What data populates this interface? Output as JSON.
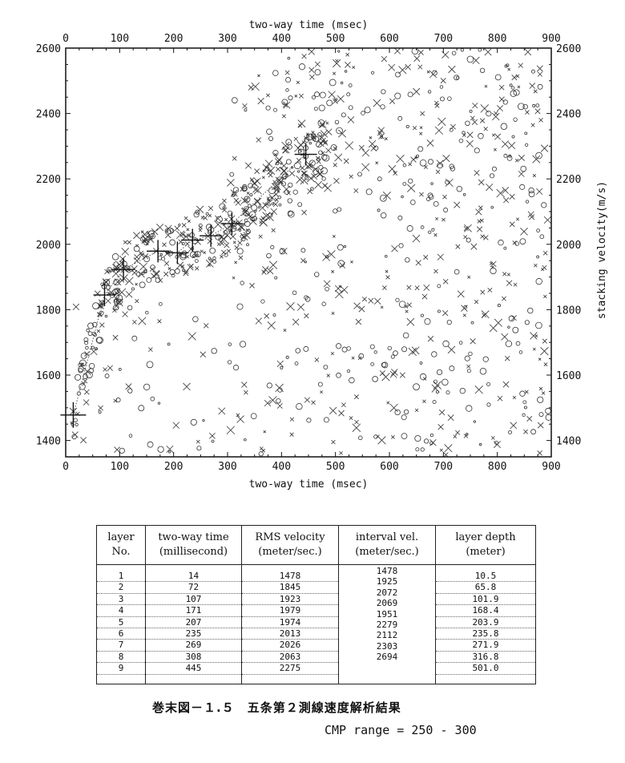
{
  "chart_data": {
    "type": "scatter",
    "xlabel": "two-way time (msec)",
    "ylabel": "stacking velocity(m/s)",
    "xlim": [
      0,
      900
    ],
    "ylim": [
      1350,
      2600
    ],
    "x_ticks": [
      "0",
      "100",
      "200",
      "300",
      "400",
      "500",
      "600",
      "700",
      "800",
      "900"
    ],
    "y_ticks": [
      "1400",
      "1600",
      "1800",
      "2000",
      "2200",
      "2400",
      "2600"
    ],
    "grid": false,
    "picked_velocity_function": {
      "x": [
        14,
        72,
        107,
        171,
        207,
        235,
        269,
        308,
        445
      ],
      "y": [
        1478,
        1845,
        1923,
        1979,
        1974,
        2013,
        2026,
        2063,
        2275
      ]
    },
    "semblance_marks": "dense scatter of circles and crosses (small and large) over the whole plot area, concentrated along the picked velocity trend",
    "marker_icons": [
      "circle-marker-icon",
      "cross-marker-icon",
      "plus-pick-icon"
    ]
  },
  "table": {
    "headers": [
      [
        "layer",
        "No."
      ],
      [
        "two-way time",
        "(millisecond)"
      ],
      [
        "RMS velocity",
        "(meter/sec.)"
      ],
      [
        "interval vel.",
        "(meter/sec.)"
      ],
      [
        "layer depth",
        "(meter)"
      ]
    ],
    "columns": [
      [
        "1",
        "2",
        "3",
        "4",
        "5",
        "6",
        "7",
        "8",
        "9"
      ],
      [
        "14",
        "72",
        "107",
        "171",
        "207",
        "235",
        "269",
        "308",
        "445"
      ],
      [
        "1478",
        "1845",
        "1923",
        "1979",
        "1974",
        "2013",
        "2026",
        "2063",
        "2275"
      ],
      [
        "1478",
        "1925",
        "2072",
        "2069",
        "1951",
        "2279",
        "2112",
        "2303",
        "2694"
      ],
      [
        "10.5",
        "65.8",
        "101.9",
        "168.4",
        "203.9",
        "235.8",
        "271.9",
        "316.8",
        "501.0"
      ]
    ]
  },
  "caption": "巻末図－１.５　五条第２測線速度解析結果",
  "cmp_range": "CMP range = 250 - 300"
}
